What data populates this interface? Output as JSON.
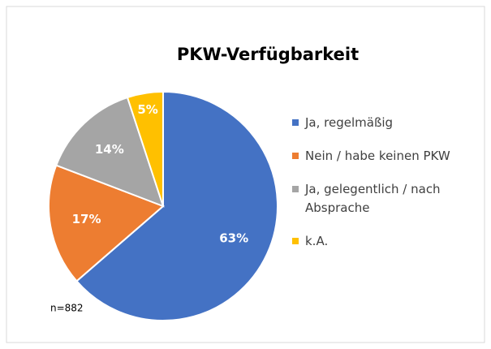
{
  "chart_data": {
    "type": "pie",
    "title": "PKW-Verfügbarkeit",
    "categories": [
      "Ja, regelmäßig",
      "Nein / habe keinen PKW",
      "Ja, gelegentlich / nach Absprache",
      "k.A."
    ],
    "values": [
      63,
      17,
      14,
      5
    ],
    "value_labels": [
      "63%",
      "17%",
      "14%",
      "5%"
    ],
    "colors": [
      "#4472c4",
      "#ed7d31",
      "#a5a5a5",
      "#ffc000"
    ],
    "legend": "right",
    "annotation": "n=882"
  }
}
